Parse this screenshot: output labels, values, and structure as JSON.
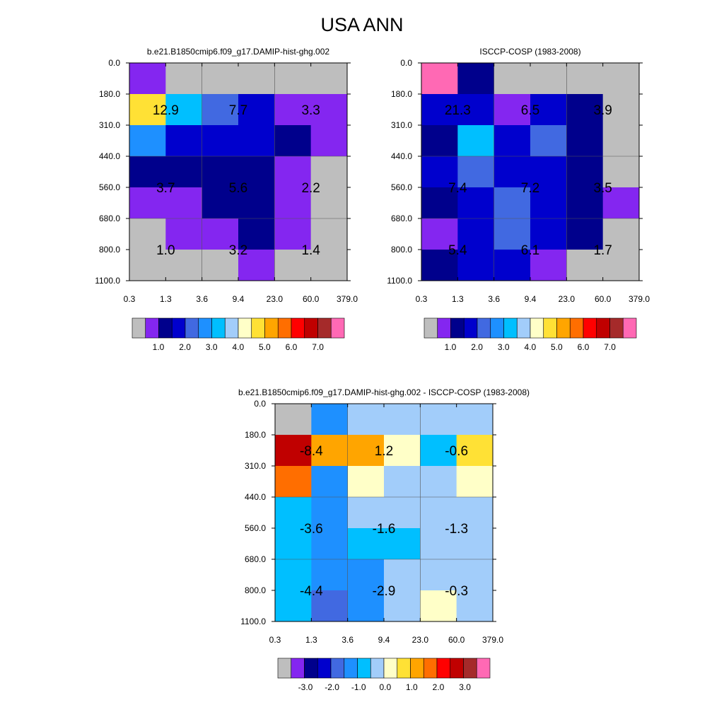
{
  "page_title": "USA ANN",
  "cell_colors": {
    "gray": "#bebebe",
    "purple": "#8426f0",
    "navy": "#00008c",
    "blue": "#0000cd",
    "royal": "#4169e1",
    "dodger": "#1e90ff",
    "sky": "#00bfff",
    "lightblue": "#a2cdfa",
    "cream": "#ffffc8",
    "yellow": "#ffe135",
    "orange": "#ffa500",
    "darkorange": "#ff6e00",
    "red": "#ff0000",
    "darkred": "#c00000",
    "brown": "#a52a2a",
    "pink": "#ff69b4"
  },
  "chart_data": [
    {
      "type": "heatmap",
      "title": "b.e21.B1850cmip6.f09_g17.DAMIP-hist-ghg.002",
      "x_ticks": [
        "0.3",
        "1.3",
        "3.6",
        "9.4",
        "23.0",
        "60.0",
        "379.0"
      ],
      "y_ticks": [
        "0.0",
        "180.0",
        "310.0",
        "440.0",
        "560.0",
        "680.0",
        "800.0",
        "1100.0"
      ],
      "cell_color_keys": [
        [
          "purple",
          "gray",
          "gray",
          "gray",
          "gray",
          "gray"
        ],
        [
          "yellow",
          "sky",
          "royal",
          "blue",
          "purple",
          "purple"
        ],
        [
          "dodger",
          "blue",
          "blue",
          "blue",
          "navy",
          "purple"
        ],
        [
          "navy",
          "navy",
          "navy",
          "navy",
          "purple",
          "gray"
        ],
        [
          "purple",
          "purple",
          "navy",
          "navy",
          "purple",
          "gray"
        ],
        [
          "gray",
          "purple",
          "purple",
          "navy",
          "purple",
          "gray"
        ],
        [
          "gray",
          "gray",
          "gray",
          "purple",
          "gray",
          "gray"
        ]
      ],
      "group_labels": [
        [
          "12.9",
          "7.7",
          "3.3"
        ],
        [
          "3.7",
          "5.6",
          "2.2"
        ],
        [
          "1.0",
          "3.2",
          "1.4"
        ]
      ],
      "colorbar": {
        "colors": [
          "gray",
          "purple",
          "navy",
          "blue",
          "royal",
          "dodger",
          "sky",
          "lightblue",
          "cream",
          "yellow",
          "orange",
          "darkorange",
          "red",
          "darkred",
          "brown",
          "pink"
        ],
        "labels": [
          "1.0",
          "2.0",
          "3.0",
          "4.0",
          "5.0",
          "6.0",
          "7.0"
        ]
      }
    },
    {
      "type": "heatmap",
      "title": "ISCCP-COSP (1983-2008)",
      "x_ticks": [
        "0.3",
        "1.3",
        "3.6",
        "9.4",
        "23.0",
        "60.0",
        "379.0"
      ],
      "y_ticks": [
        "0.0",
        "180.0",
        "310.0",
        "440.0",
        "560.0",
        "680.0",
        "800.0",
        "1100.0"
      ],
      "cell_color_keys": [
        [
          "pink",
          "navy",
          "gray",
          "gray",
          "gray",
          "gray"
        ],
        [
          "blue",
          "blue",
          "purple",
          "blue",
          "navy",
          "gray"
        ],
        [
          "navy",
          "sky",
          "blue",
          "royal",
          "navy",
          "gray"
        ],
        [
          "blue",
          "royal",
          "blue",
          "blue",
          "navy",
          "gray"
        ],
        [
          "navy",
          "blue",
          "royal",
          "blue",
          "navy",
          "purple"
        ],
        [
          "purple",
          "blue",
          "royal",
          "blue",
          "navy",
          "gray"
        ],
        [
          "navy",
          "blue",
          "blue",
          "purple",
          "gray",
          "gray"
        ]
      ],
      "group_labels": [
        [
          "21.3",
          "6.5",
          "3.9"
        ],
        [
          "7.4",
          "7.2",
          "3.5"
        ],
        [
          "5.4",
          "6.1",
          "1.7"
        ]
      ],
      "colorbar": {
        "colors": [
          "gray",
          "purple",
          "navy",
          "blue",
          "royal",
          "dodger",
          "sky",
          "lightblue",
          "cream",
          "yellow",
          "orange",
          "darkorange",
          "red",
          "darkred",
          "brown",
          "pink"
        ],
        "labels": [
          "1.0",
          "2.0",
          "3.0",
          "4.0",
          "5.0",
          "6.0",
          "7.0"
        ]
      }
    },
    {
      "type": "heatmap",
      "title": "b.e21.B1850cmip6.f09_g17.DAMIP-hist-ghg.002 - ISCCP-COSP (1983-2008)",
      "x_ticks": [
        "0.3",
        "1.3",
        "3.6",
        "9.4",
        "23.0",
        "60.0",
        "379.0"
      ],
      "y_ticks": [
        "0.0",
        "180.0",
        "310.0",
        "440.0",
        "560.0",
        "680.0",
        "800.0",
        "1100.0"
      ],
      "cell_color_keys": [
        [
          "gray",
          "dodger",
          "lightblue",
          "lightblue",
          "lightblue",
          "lightblue"
        ],
        [
          "darkred",
          "orange",
          "orange",
          "cream",
          "sky",
          "yellow"
        ],
        [
          "darkorange",
          "dodger",
          "cream",
          "lightblue",
          "lightblue",
          "cream"
        ],
        [
          "sky",
          "dodger",
          "lightblue",
          "lightblue",
          "lightblue",
          "lightblue"
        ],
        [
          "sky",
          "dodger",
          "sky",
          "sky",
          "lightblue",
          "lightblue"
        ],
        [
          "sky",
          "dodger",
          "dodger",
          "lightblue",
          "lightblue",
          "lightblue"
        ],
        [
          "sky",
          "royal",
          "dodger",
          "lightblue",
          "cream",
          "lightblue"
        ]
      ],
      "group_labels": [
        [
          "-8.4",
          "1.2",
          "-0.6"
        ],
        [
          "-3.6",
          "-1.6",
          "-1.3"
        ],
        [
          "-4.4",
          "-2.9",
          "-0.3"
        ]
      ],
      "colorbar": {
        "colors": [
          "gray",
          "purple",
          "navy",
          "blue",
          "royal",
          "dodger",
          "sky",
          "lightblue",
          "cream",
          "yellow",
          "orange",
          "darkorange",
          "red",
          "darkred",
          "brown",
          "pink"
        ],
        "labels": [
          "-3.0",
          "-2.0",
          "-1.0",
          "0.0",
          "1.0",
          "2.0",
          "3.0"
        ]
      }
    }
  ]
}
